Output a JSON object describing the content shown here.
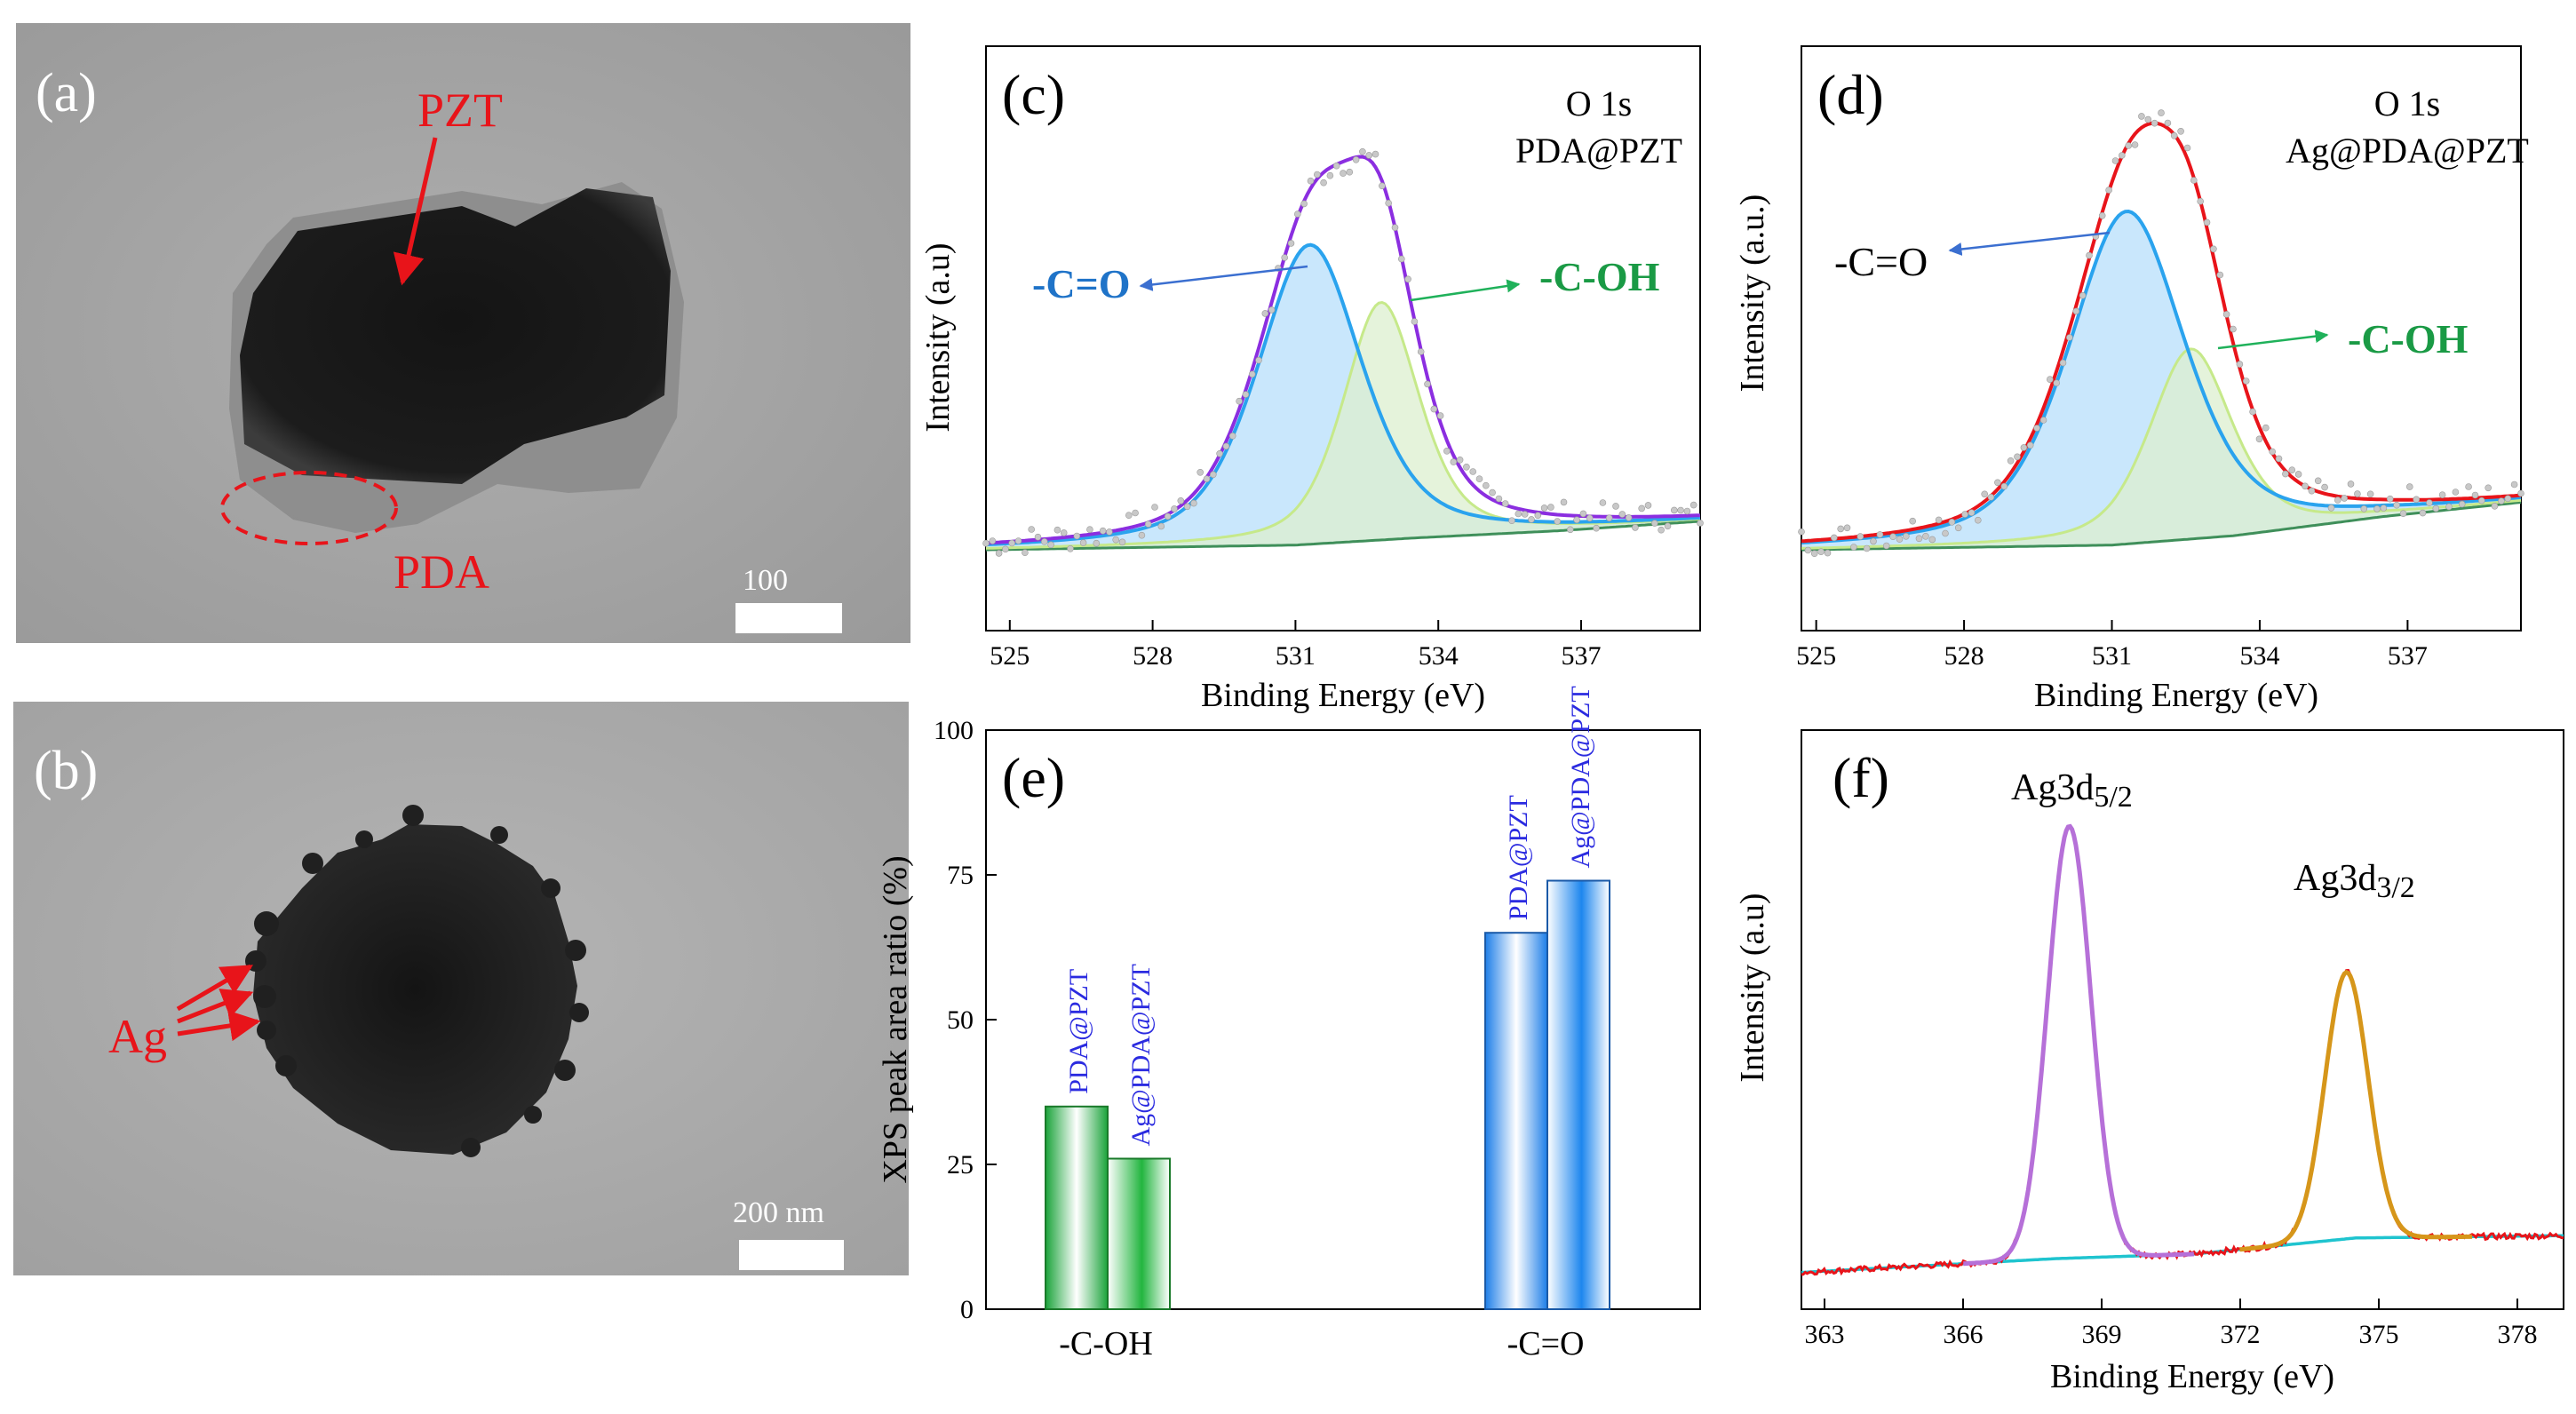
{
  "panel_a": {
    "letter": "(a)",
    "pzt_label": "PZT",
    "pda_label": "PDA",
    "scale_label": "100"
  },
  "panel_b": {
    "letter": "(b)",
    "ag_label": "Ag",
    "scale_label": "200 nm"
  },
  "colors": {
    "arrow_red": "#e8141a",
    "ellipse_red": "#e8141a",
    "co_blue": "#1f73c8",
    "coh_green": "#1a9a45",
    "sample_label_blue": "#2b2be0",
    "envelope_purple": "#8b2ee0",
    "envelope_red": "#e8141a",
    "peak1_line": "#2aa3ee",
    "peak1_fill": "#bfe3fb",
    "peak2_line": "#c6e98a",
    "peak2_fill": "#dcefcf",
    "baseline_green": "#3f8f5a",
    "ag_raw_red": "#e8141a",
    "ag_fit_violet": "#b670d8",
    "ag_fit_orange": "#d6961a",
    "ag_baseline_cyan": "#1fc4cf"
  },
  "chart_data": [
    {
      "id": "c",
      "type": "line",
      "letter": "(c)",
      "title_line1": "O 1s",
      "title_line2": "PDA@PZT",
      "xlabel": "Binding Energy (eV)",
      "ylabel": "Intensity (a.u)",
      "xlim": [
        524.5,
        539.5
      ],
      "ylim": [
        -0.15,
        1.08
      ],
      "xticks": [
        525,
        528,
        531,
        534,
        537
      ],
      "xtick_labels": [
        "525",
        "528",
        "531",
        "534",
        "537"
      ],
      "baseline": {
        "x": [
          524.5,
          531,
          533.5,
          536.5,
          539.5
        ],
        "y": [
          0.02,
          0.03,
          0.045,
          0.06,
          0.08
        ]
      },
      "peaks": [
        {
          "name": "-C=O",
          "center": 531.3,
          "height": 0.63,
          "fwhm": 2.6,
          "mix": 0.5
        },
        {
          "name": "-C-OH",
          "center": 532.8,
          "height": 0.5,
          "fwhm": 1.9,
          "mix": 0.5
        }
      ],
      "annotations": [
        {
          "text": "-C=O",
          "x": 526.0,
          "y": 0.58
        },
        {
          "text": "-C-OH",
          "x": 536.6,
          "y": 0.62
        }
      ]
    },
    {
      "id": "d",
      "type": "line",
      "letter": "(d)",
      "title_line1": "O 1s",
      "title_line2": "Ag@PDA@PZT",
      "xlabel": "Binding Energy (eV)",
      "ylabel": "Intensity (a.u.)",
      "xlim": [
        524.7,
        539.3
      ],
      "ylim": [
        -0.15,
        1.08
      ],
      "xticks": [
        525,
        528,
        531,
        534,
        537
      ],
      "xtick_labels": [
        "525",
        "528",
        "531",
        "534",
        "537"
      ],
      "baseline": {
        "x": [
          524.7,
          531,
          533.5,
          536.5,
          539.3
        ],
        "y": [
          0.02,
          0.03,
          0.05,
          0.09,
          0.12
        ]
      },
      "peaks": [
        {
          "name": "-C=O",
          "center": 531.3,
          "height": 0.7,
          "fwhm": 2.8,
          "mix": 0.5
        },
        {
          "name": "-C-OH",
          "center": 532.6,
          "height": 0.4,
          "fwhm": 2.0,
          "mix": 0.5
        }
      ],
      "annotations": [
        {
          "text": "-C=O",
          "x": 526.6,
          "y": 0.64
        },
        {
          "text": "-C-OH",
          "x": 536.6,
          "y": 0.44
        }
      ]
    },
    {
      "id": "e",
      "type": "bar",
      "letter": "(e)",
      "categories": [
        "-C-OH",
        "-C=O"
      ],
      "series": [
        {
          "name": "PDA@PZT",
          "values": [
            35,
            65
          ]
        },
        {
          "name": "Ag@PDA@PZT",
          "values": [
            26,
            74
          ]
        }
      ],
      "ylabel": "XPS peak area ratio (%)",
      "ylim": [
        0,
        100
      ],
      "yticks": [
        0,
        25,
        50,
        75,
        100
      ],
      "ytick_labels": [
        "0",
        "25",
        "50",
        "75",
        "100"
      ]
    },
    {
      "id": "f",
      "type": "line",
      "letter": "(f)",
      "xlabel": "Binding Energy (eV)",
      "ylabel": "Intensity (a.u)",
      "xlim": [
        362.5,
        379
      ],
      "ylim": [
        -0.08,
        1.18
      ],
      "xticks": [
        363,
        366,
        369,
        372,
        375,
        378
      ],
      "xtick_labels": [
        "363",
        "366",
        "369",
        "372",
        "375",
        "378"
      ],
      "baseline": {
        "x": [
          362.5,
          368,
          371,
          374.5,
          379
        ],
        "y": [
          0.0,
          0.03,
          0.04,
          0.075,
          0.08
        ]
      },
      "peaks": [
        {
          "name": "Ag3d5/2",
          "center": 368.3,
          "height": 0.94,
          "fwhm": 1.1
        },
        {
          "name": "Ag3d3/2",
          "center": 374.3,
          "height": 0.58,
          "fwhm": 1.1
        }
      ],
      "labels": [
        {
          "main": "Ag3d",
          "sub": "5/2"
        },
        {
          "main": "Ag3d",
          "sub": "3/2"
        }
      ]
    }
  ]
}
